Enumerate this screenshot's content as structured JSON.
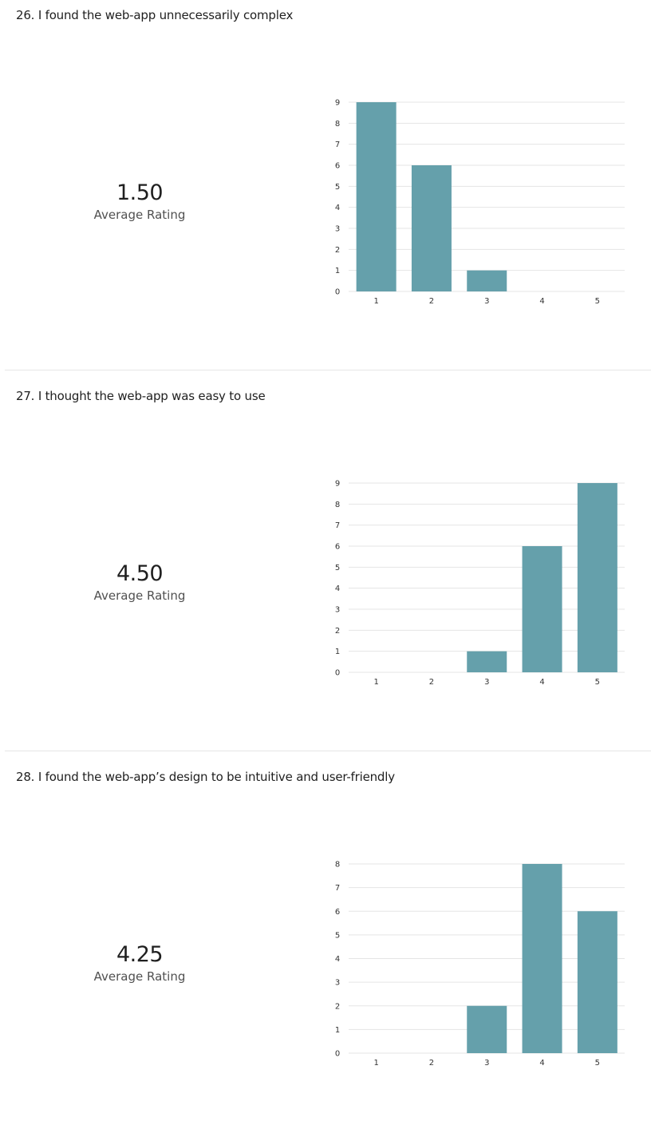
{
  "colors": {
    "bar": "#65a0ab",
    "gridline": "#e5e5e5",
    "divider": "#e6e6e6"
  },
  "questions": [
    {
      "title": "26.  I found the web-app unnecessarily complex",
      "average_value": "1.50",
      "average_label": "Average Rating"
    },
    {
      "title": "27.  I thought the web-app was easy to use",
      "average_value": "4.50",
      "average_label": "Average Rating"
    },
    {
      "title": "28.  I found the web-app’s design to be intuitive and user-friendly",
      "average_value": "4.25",
      "average_label": "Average Rating"
    }
  ],
  "chart_data": [
    {
      "type": "bar",
      "categories": [
        "1",
        "2",
        "3",
        "4",
        "5"
      ],
      "values": [
        9,
        6,
        1,
        0,
        0
      ],
      "title": "",
      "xlabel": "",
      "ylabel": "",
      "ylim": [
        0,
        9
      ],
      "yticks": [
        0,
        1,
        2,
        3,
        4,
        5,
        6,
        7,
        8,
        9
      ],
      "grid": true,
      "legend": "none"
    },
    {
      "type": "bar",
      "categories": [
        "1",
        "2",
        "3",
        "4",
        "5"
      ],
      "values": [
        0,
        0,
        1,
        6,
        9
      ],
      "title": "",
      "xlabel": "",
      "ylabel": "",
      "ylim": [
        0,
        9
      ],
      "yticks": [
        0,
        1,
        2,
        3,
        4,
        5,
        6,
        7,
        8,
        9
      ],
      "grid": true,
      "legend": "none"
    },
    {
      "type": "bar",
      "categories": [
        "1",
        "2",
        "3",
        "4",
        "5"
      ],
      "values": [
        0,
        0,
        2,
        8,
        6
      ],
      "title": "",
      "xlabel": "",
      "ylabel": "",
      "ylim": [
        0,
        8
      ],
      "yticks": [
        0,
        1,
        2,
        3,
        4,
        5,
        6,
        7,
        8
      ],
      "grid": true,
      "legend": "none"
    }
  ]
}
